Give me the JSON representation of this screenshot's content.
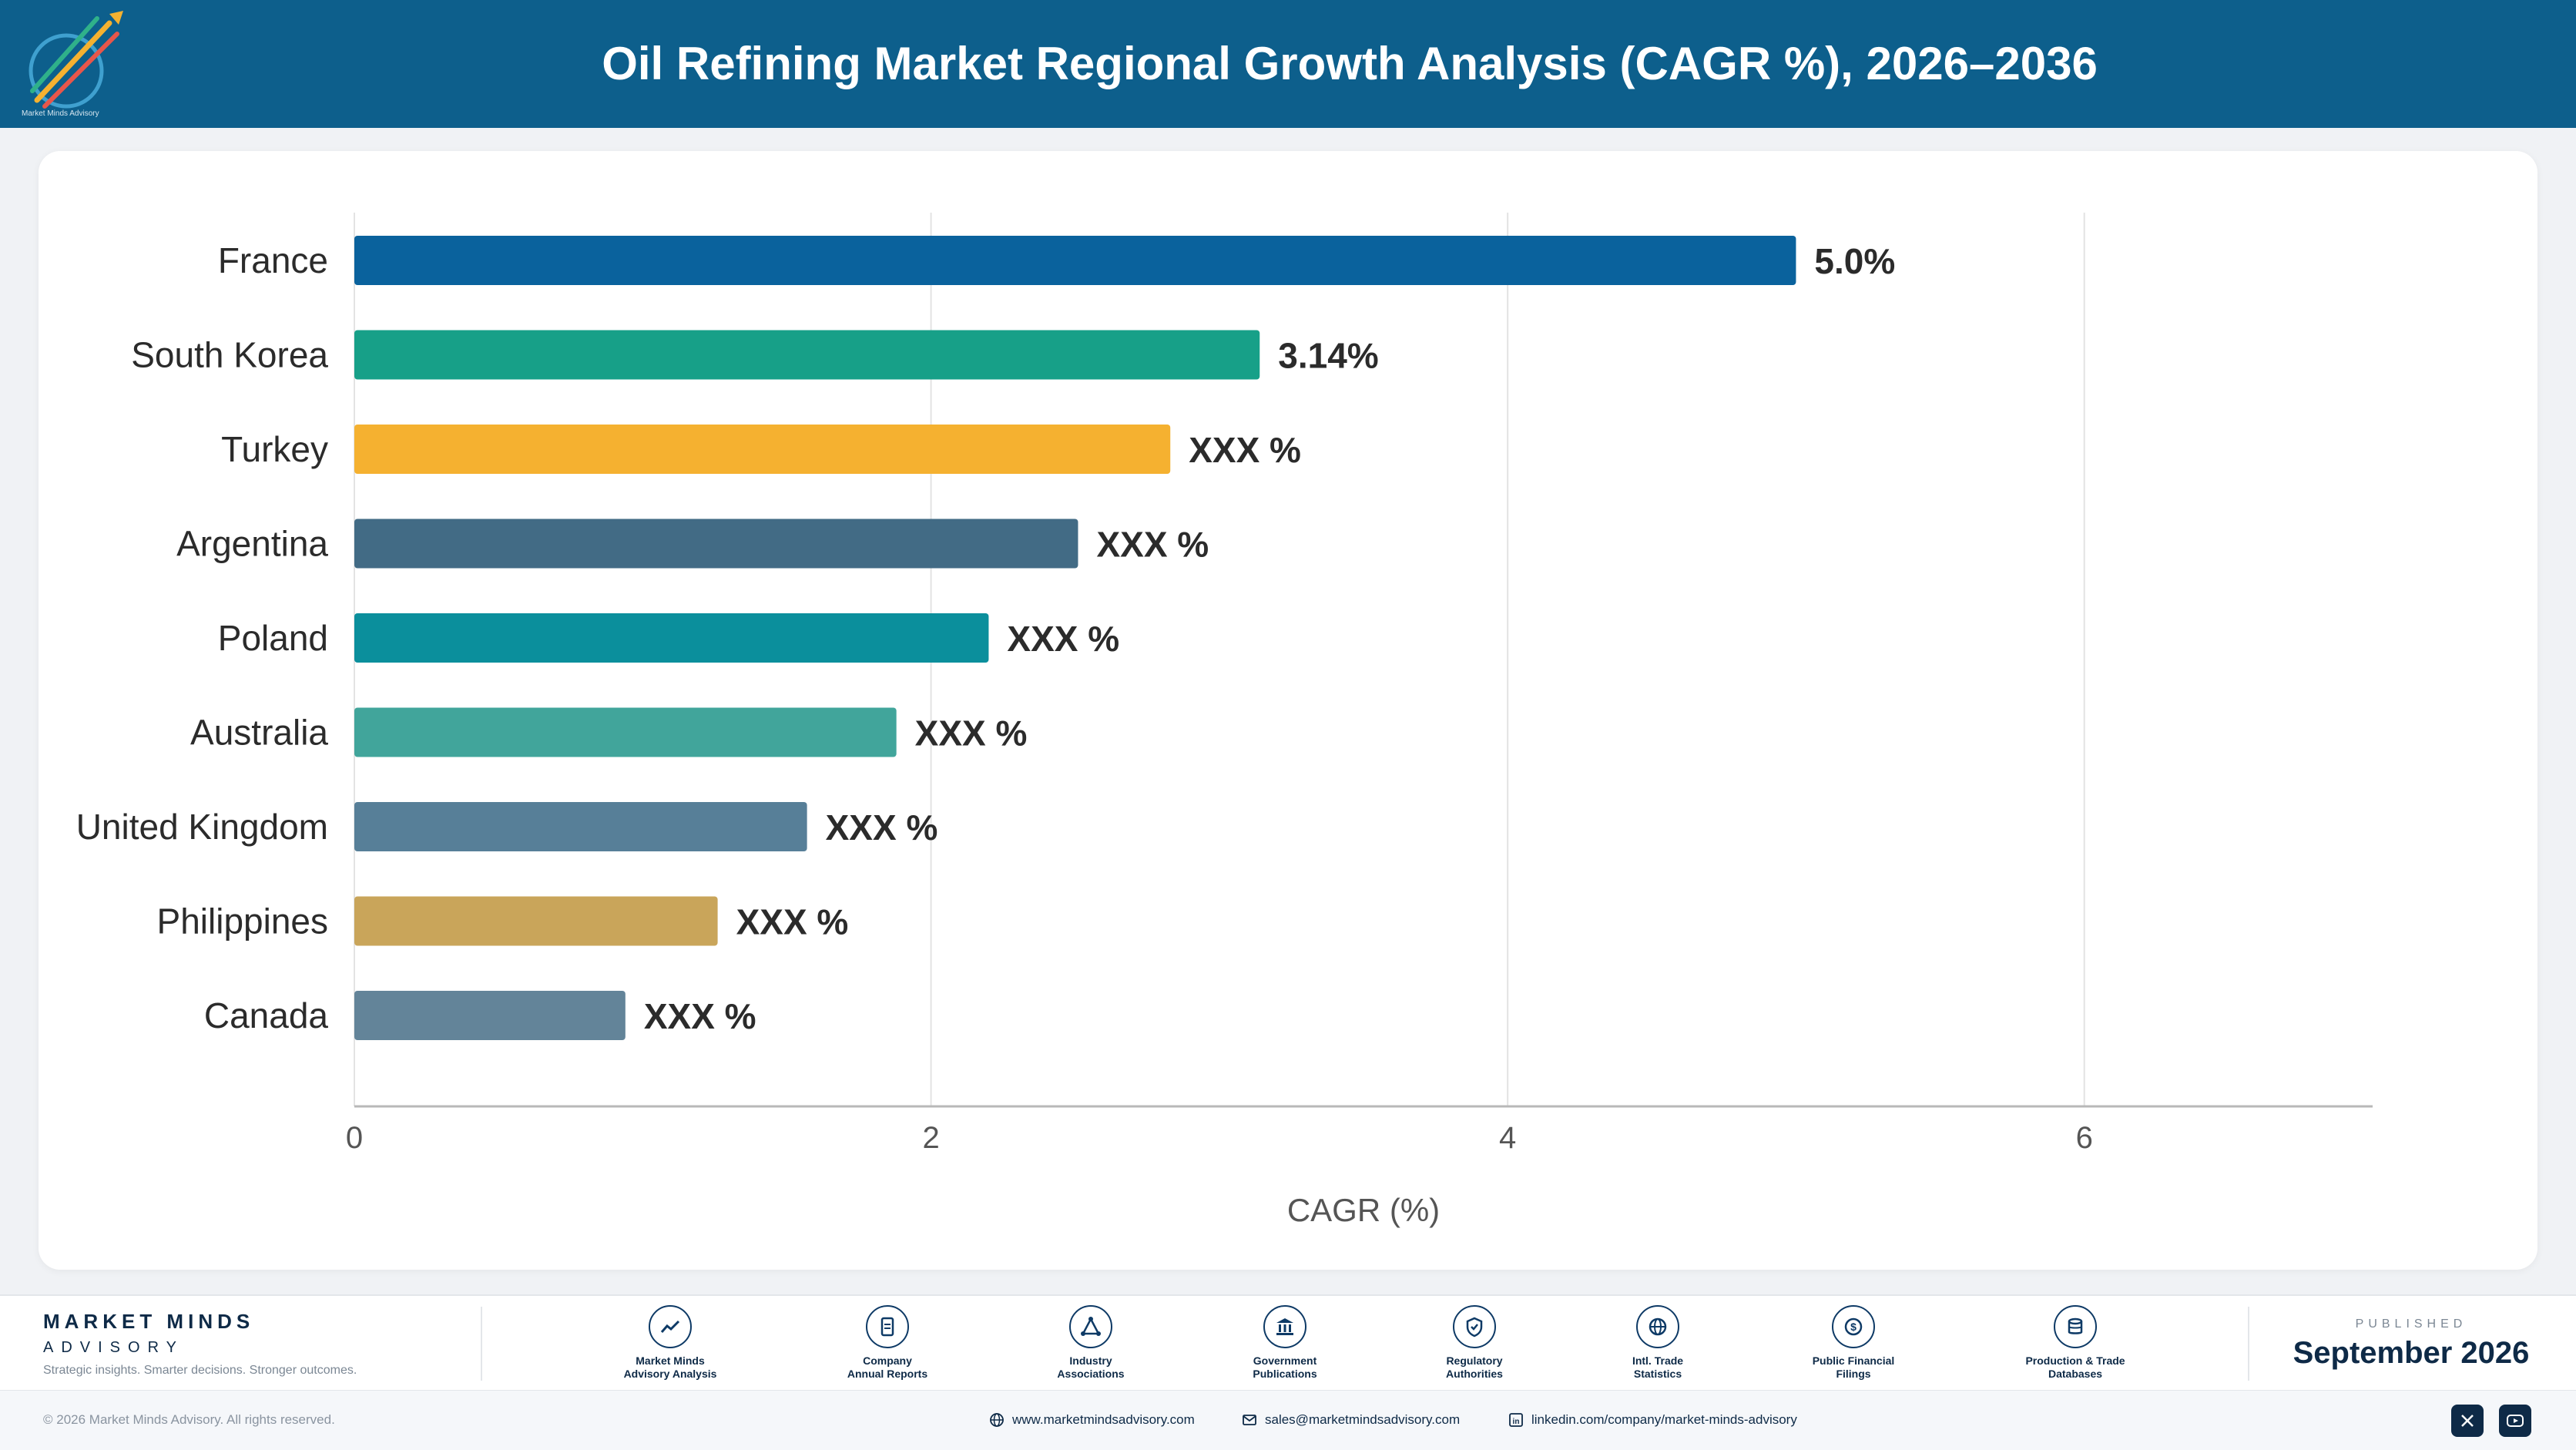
{
  "header": {
    "title": "Oil Refining Market Regional Growth Analysis (CAGR %), 2026–2036",
    "logo_text": "Market Minds Advisory"
  },
  "chart_data": {
    "type": "bar",
    "orientation": "horizontal",
    "categories": [
      "France",
      "South Korea",
      "Turkey",
      "Argentina",
      "Poland",
      "Australia",
      "United Kingdom",
      "Philippines",
      "Canada"
    ],
    "values": [
      5.0,
      3.14,
      2.83,
      2.51,
      2.2,
      1.88,
      1.57,
      1.26,
      0.94
    ],
    "data_labels": [
      "5.0%",
      "3.14%",
      "XXX %",
      "XXX %",
      "XXX %",
      "XXX %",
      "XXX %",
      "XXX %",
      "XXX %"
    ],
    "colors": [
      "#0a629d",
      "#17a088",
      "#f5b130",
      "#426b85",
      "#0b8f9c",
      "#41a59b",
      "#577f98",
      "#c9a55a",
      "#638499"
    ],
    "xlabel": "CAGR (%)",
    "ylabel": "",
    "xlim": [
      0,
      7
    ],
    "xticks": [
      0,
      2,
      4,
      6
    ],
    "grid": true
  },
  "footer": {
    "brand_name": "MARKET MINDS",
    "brand_sub": "ADVISORY",
    "tagline": "Strategic insights. Smarter decisions. Stronger outcomes.",
    "sources": [
      {
        "label": "Market Minds\nAdvisory Analysis",
        "icon": "trend-chart-icon"
      },
      {
        "label": "Company\nAnnual Reports",
        "icon": "document-icon"
      },
      {
        "label": "Industry\nAssociations",
        "icon": "network-icon"
      },
      {
        "label": "Government\nPublications",
        "icon": "government-building-icon"
      },
      {
        "label": "Regulatory\nAuthorities",
        "icon": "shield-check-icon"
      },
      {
        "label": "Intl. Trade\nStatistics",
        "icon": "globe-icon"
      },
      {
        "label": "Public Financial\nFilings",
        "icon": "dollar-coin-icon"
      },
      {
        "label": "Production & Trade\nDatabases",
        "icon": "database-icon"
      }
    ],
    "published_label": "PUBLISHED",
    "published_date": "September 2026",
    "copyright": "© 2026 Market Minds Advisory. All rights reserved.",
    "website": "www.marketmindsadvisory.com",
    "email": "sales@marketmindsadvisory.com",
    "linkedin": "linkedin.com/company/market-minds-advisory"
  }
}
